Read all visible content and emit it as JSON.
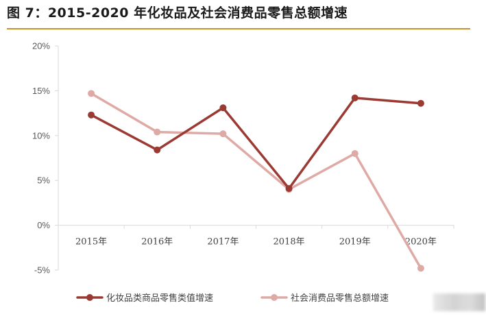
{
  "figure": {
    "title": "图 7：2015-2020 年化妆品及社会消费品零售总额增速",
    "rule_color": "#c8922e"
  },
  "chart_data": {
    "type": "line",
    "title": "图 7：2015-2020 年化妆品及社会消费品零售总额增速",
    "categories": [
      "2015年",
      "2016年",
      "2017年",
      "2018年",
      "2019年",
      "2020年"
    ],
    "series": [
      {
        "name": "化妆品类商品零售类值增速",
        "color": "#9b3a33",
        "values": [
          12.3,
          8.4,
          13.1,
          4.1,
          14.2,
          13.6
        ]
      },
      {
        "name": "社会消费品零售总额增速",
        "color": "#dfaaa6",
        "values": [
          14.7,
          10.4,
          10.2,
          4.0,
          8.0,
          -4.8
        ]
      }
    ],
    "yticks": [
      "20%",
      "15%",
      "10%",
      "5%",
      "0%",
      "-5%"
    ],
    "ylim": [
      -5,
      20
    ],
    "xlabel": "",
    "ylabel": "",
    "legend": "bottom"
  }
}
